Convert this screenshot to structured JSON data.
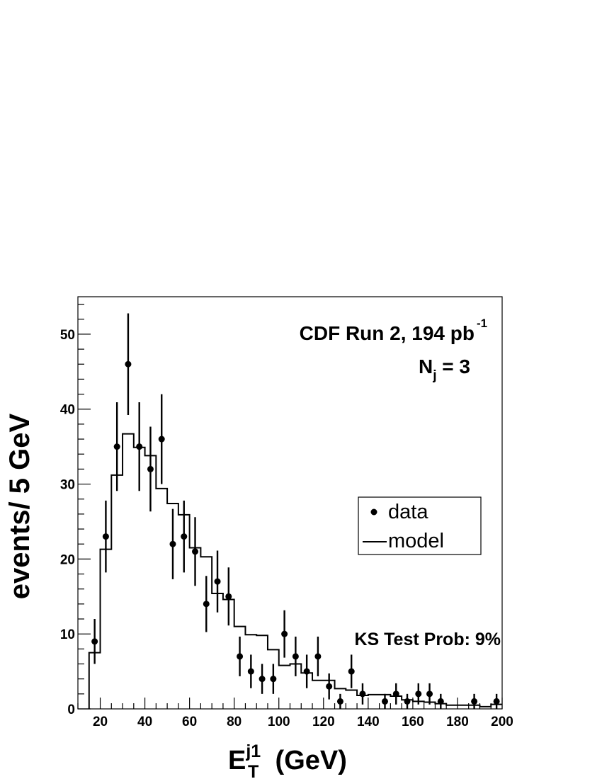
{
  "chart_data": {
    "type": "scatter",
    "annotations": {
      "experiment": "CDF Run 2, 194 pb",
      "lumi_exponent": "-1",
      "njets_base": "N",
      "njets_sub": "j",
      "njets_value": " = 3",
      "ks_test": "KS Test Prob: 9%"
    },
    "ylabel": "events/ 5 GeV",
    "xlabel": {
      "base": "E",
      "sup": "j1",
      "sub": "T",
      "unit": " (GeV)"
    },
    "xlim": [
      10,
      200
    ],
    "ylim": [
      0,
      55
    ],
    "x_ticks": [
      20,
      40,
      60,
      80,
      100,
      120,
      140,
      160,
      180,
      200
    ],
    "y_ticks": [
      0,
      10,
      20,
      30,
      40,
      50
    ],
    "legend": {
      "position": "center-right",
      "entries": [
        {
          "label": "data",
          "style": "marker"
        },
        {
          "label": "model",
          "style": "line"
        }
      ]
    },
    "series": [
      {
        "name": "data",
        "style": "points-with-errors",
        "x": [
          17.5,
          22.5,
          27.5,
          32.5,
          37.5,
          42.5,
          47.5,
          52.5,
          57.5,
          62.5,
          67.5,
          72.5,
          77.5,
          82.5,
          87.5,
          92.5,
          97.5,
          102.5,
          107.5,
          112.5,
          117.5,
          122.5,
          127.5,
          132.5,
          137.5,
          147.5,
          152.5,
          157.5,
          162.5,
          167.5,
          172.5,
          187.5,
          197.5
        ],
        "y": [
          9,
          23,
          35,
          46,
          35,
          32,
          36,
          22,
          23,
          21,
          14,
          17,
          15,
          7,
          5,
          4,
          4,
          10,
          7,
          5,
          7,
          3,
          1,
          5,
          2,
          1,
          2,
          1,
          2,
          2,
          1,
          1,
          1
        ]
      },
      {
        "name": "model",
        "style": "step",
        "bin_edges": [
          15,
          20,
          25,
          30,
          35,
          40,
          45,
          50,
          55,
          60,
          65,
          70,
          75,
          80,
          85,
          90,
          95,
          100,
          105,
          110,
          115,
          120,
          125,
          130,
          135,
          140,
          145,
          150,
          155,
          160,
          165,
          170,
          175,
          180,
          185,
          190,
          195,
          200
        ],
        "values": [
          7.5,
          21.3,
          31.2,
          36.7,
          34.9,
          33.8,
          29.4,
          27.4,
          25.9,
          21.5,
          20.3,
          15.4,
          14.6,
          11.0,
          9.9,
          9.8,
          7.9,
          5.8,
          6.0,
          4.8,
          3.8,
          3.8,
          2.7,
          2.5,
          1.8,
          1.9,
          1.9,
          1.7,
          1.2,
          1.0,
          0.9,
          0.7,
          0.5,
          0.5,
          0.5,
          0.3,
          0.6
        ]
      }
    ]
  }
}
